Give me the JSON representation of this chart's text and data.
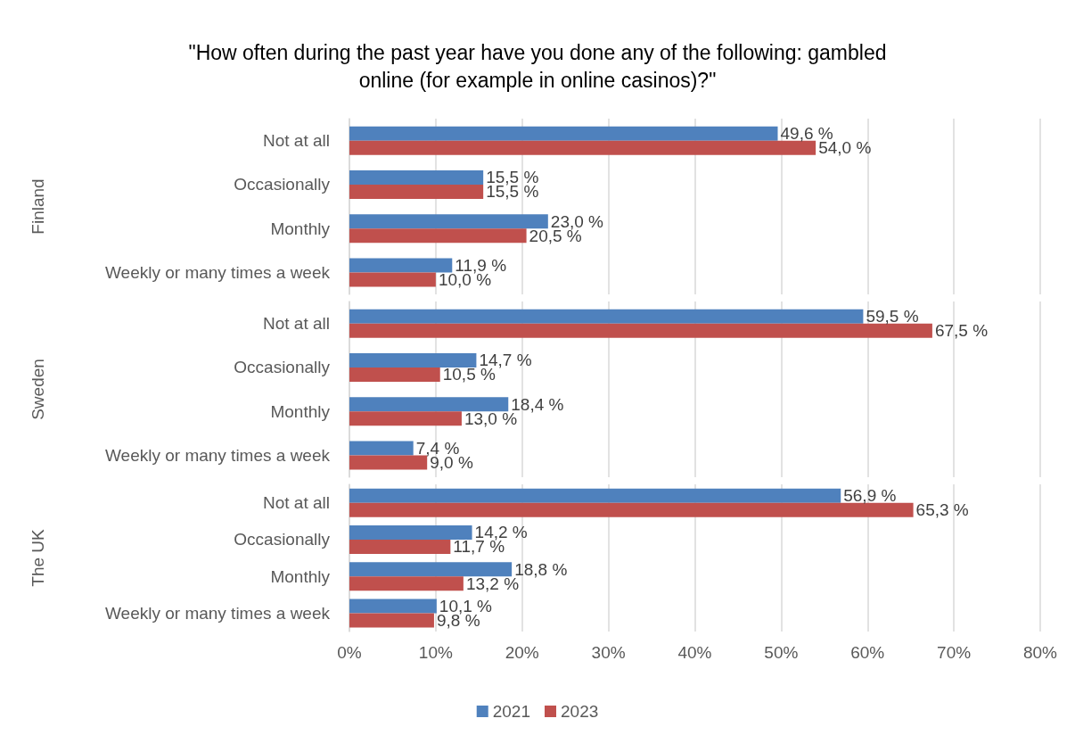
{
  "chart_data": [
    {
      "type": "bar",
      "orientation": "horizontal",
      "title": "\"How often during the past year have you done any of the following: gambled online (for example in online casinos)?\"",
      "ylabel": "Finland",
      "categories": [
        "Not at all",
        "Occasionally",
        "Monthly",
        "Weekly or many times a week"
      ],
      "series": [
        {
          "color": "#4f81bd",
          "values": [
            49.6,
            15.5,
            23.0,
            11.9
          ],
          "value_labels": [
            "49,6 %",
            "15,5 %",
            "23,0 %",
            "11,9 %"
          ]
        },
        {
          "color": "#c0504d",
          "values": [
            54.0,
            15.5,
            20.5,
            10.0
          ],
          "value_labels": [
            "54,0 %",
            "15,5 %",
            "20,5 %",
            "10,0 %"
          ]
        }
      ],
      "xlim": [
        0,
        80
      ],
      "xticks": [
        0,
        10,
        20,
        30,
        40,
        50,
        60,
        70,
        80
      ],
      "grid": "x",
      "tick_labels": "y"
    },
    {
      "type": "bar",
      "orientation": "horizontal",
      "ylabel": "Sweden",
      "categories": [
        "Not at all",
        "Occasionally",
        "Monthly",
        "Weekly or many times a week"
      ],
      "series": [
        {
          "color": "#4f81bd",
          "values": [
            59.5,
            14.7,
            18.4,
            7.4
          ],
          "value_labels": [
            "59,5 %",
            "14,7 %",
            "18,4 %",
            "7,4 %"
          ]
        },
        {
          "color": "#c0504d",
          "values": [
            67.5,
            10.5,
            13.0,
            9.0
          ],
          "value_labels": [
            "67,5 %",
            "10,5 %",
            "13,0 %",
            "9,0 %"
          ]
        }
      ],
      "xlim": [
        0,
        80
      ],
      "xticks": [
        0,
        10,
        20,
        30,
        40,
        50,
        60,
        70,
        80
      ],
      "grid": "x",
      "tick_labels": "y"
    },
    {
      "type": "bar",
      "orientation": "horizontal",
      "ylabel": "The UK",
      "categories": [
        "Not at all",
        "Occasionally",
        "Monthly",
        "Weekly or many times a week"
      ],
      "series": [
        {
          "name": "2021",
          "color": "#4f81bd",
          "values": [
            56.9,
            14.2,
            18.8,
            10.1
          ],
          "value_labels": [
            "56,9 %",
            "14,2 %",
            "18,8 %",
            "10,1 %"
          ]
        },
        {
          "name": "2023",
          "color": "#c0504d",
          "values": [
            65.3,
            11.7,
            13.2,
            9.8
          ],
          "value_labels": [
            "65,3 %",
            "11,7 %",
            "13,2 %",
            "9,8 %"
          ]
        }
      ],
      "xlim": [
        0,
        80
      ],
      "xticks": [
        {
          "value": 0,
          "label": "0%"
        },
        {
          "value": 10,
          "label": "10%"
        },
        {
          "value": 20,
          "label": "20%"
        },
        {
          "value": 30,
          "label": "30%"
        },
        {
          "value": 40,
          "label": "40%"
        },
        {
          "value": 50,
          "label": "50%"
        },
        {
          "value": 60,
          "label": "60%"
        },
        {
          "value": 70,
          "label": "70%"
        },
        {
          "value": 80,
          "label": "80%"
        }
      ],
      "grid": "x",
      "legend": "bottom"
    }
  ]
}
